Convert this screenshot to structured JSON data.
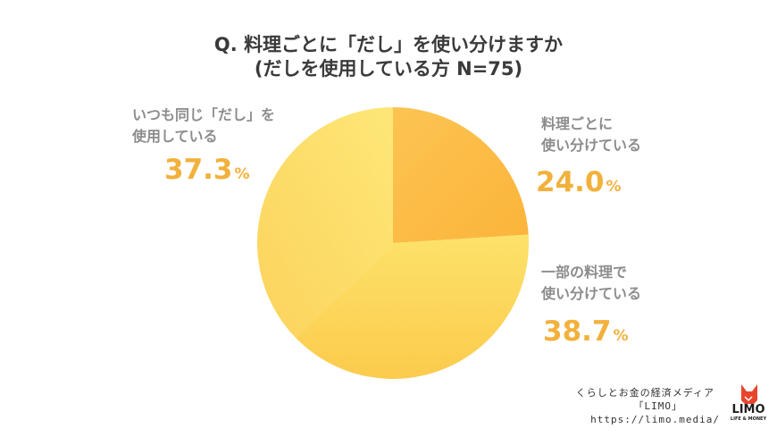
{
  "chart_data": {
    "type": "pie",
    "title": "Q. 料理ごとに「だし」を使い分けますか",
    "subtitle": "(だしを使用している方 N=75)",
    "slices": [
      {
        "label_line1": "料理ごとに",
        "label_line2": "使い分けている",
        "value": 24.0,
        "value_text": "24.0",
        "color": "#fbb940"
      },
      {
        "label_line1": "一部の料理で",
        "label_line2": "使い分けている",
        "value": 38.7,
        "value_text": "38.7",
        "color": "#fcd55a"
      },
      {
        "label_line1": "いつも同じ「だし」を",
        "label_line2": "使用している",
        "value": 37.3,
        "value_text": "37.3",
        "color": "#fce06b"
      }
    ],
    "unit": "%"
  },
  "footer": {
    "line1": "くらしとお金の経済メディア",
    "line2": "「LIMO」",
    "line3": "https://limo.media/"
  },
  "logo": {
    "text": "LIMO",
    "sub": "LIFE & MONEY",
    "icon": "fox-icon",
    "color": "#e8452c"
  }
}
